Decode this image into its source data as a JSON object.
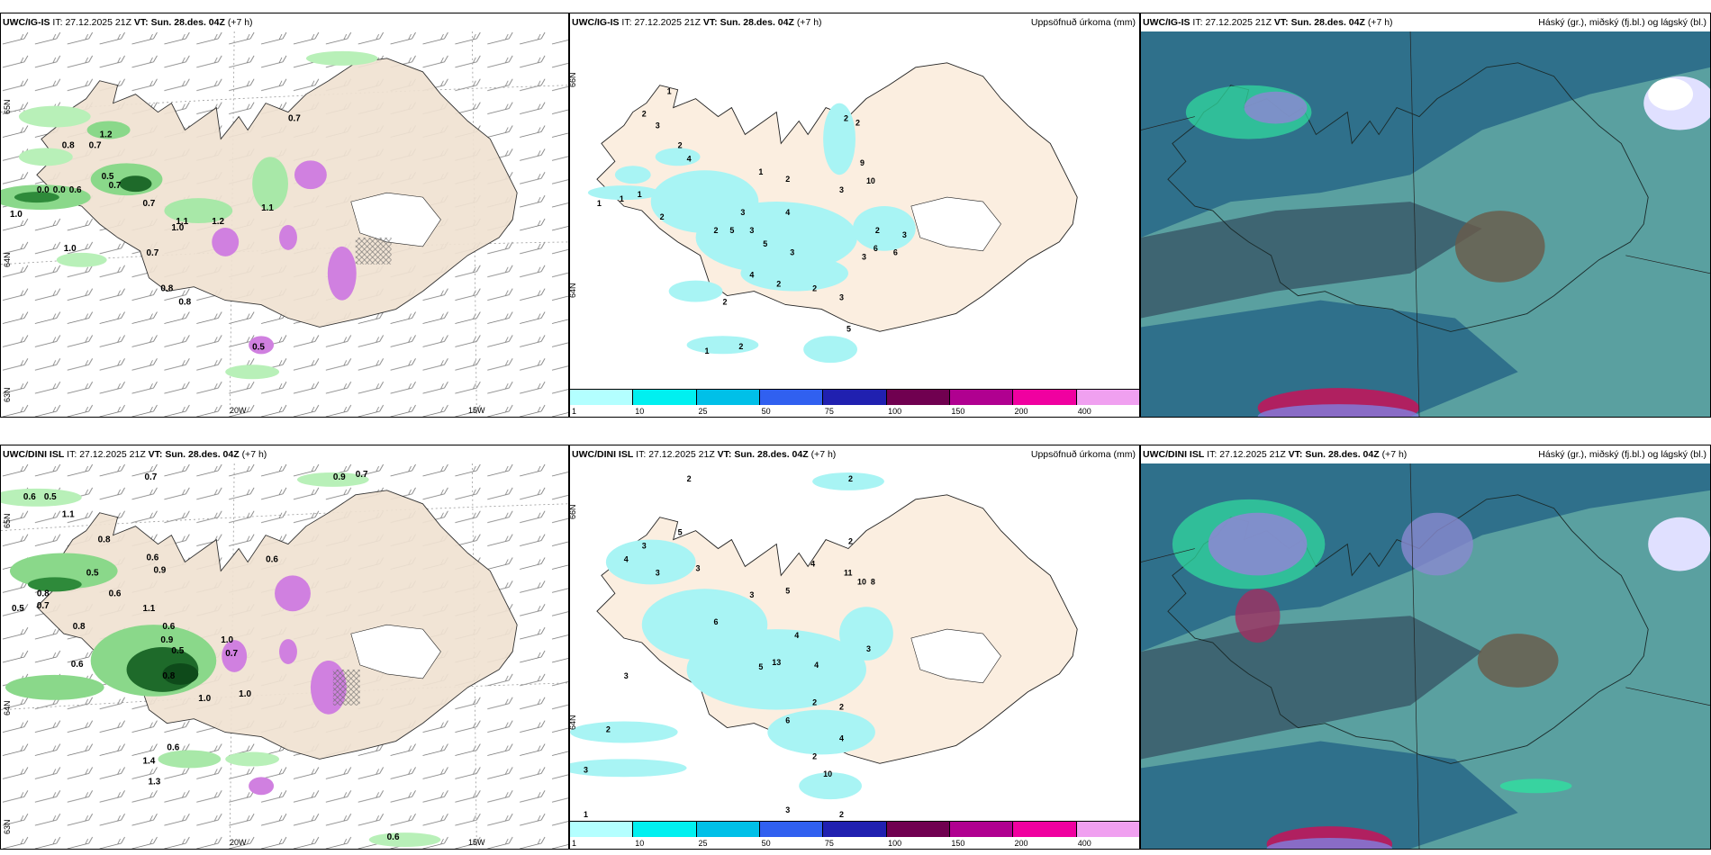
{
  "panels": [
    {
      "id": "top-left",
      "model": "UWC/IG-IS",
      "it_prefix": "IT:",
      "issue_time": "27.12.2025 21Z",
      "vt_prefix": "VT:",
      "valid_time": "Sun. 28.des. 04Z",
      "lead": "(+7 h)",
      "right_title": "",
      "bottom_ticks": [
        "20W",
        "15W"
      ],
      "left_ticks": [
        "65N",
        "64N",
        "63N"
      ],
      "values": [
        "0.7",
        "0.8",
        "0.7",
        "1.2",
        "0.5",
        "0.7",
        "0.0",
        "0.0",
        "0.6",
        "1.0",
        "1.1",
        "0.7",
        "1.0",
        "1.2",
        "0.8",
        "0.7",
        "0.8",
        "0.5",
        "1.0",
        "1.1"
      ]
    },
    {
      "id": "top-middle",
      "model": "UWC/IG-IS",
      "it_prefix": "IT:",
      "issue_time": "27.12.2025 21Z",
      "vt_prefix": "VT:",
      "valid_time": "Sun. 28.des. 04Z",
      "lead": "(+7 h)",
      "right_title": "Uppsöfnuð úrkoma (mm)",
      "left_ticks": [
        "66N",
        "64N"
      ],
      "values": [
        "1",
        "2",
        "3",
        "2",
        "4",
        "1",
        "1",
        "1",
        "2",
        "3",
        "2",
        "5",
        "3",
        "4",
        "5",
        "3",
        "1",
        "2",
        "4",
        "2",
        "2",
        "9",
        "10",
        "3",
        "2",
        "3",
        "6",
        "5",
        "1",
        "2",
        "2",
        "2",
        "3",
        "2",
        "6",
        "3"
      ]
    },
    {
      "id": "top-right",
      "model": "UWC/IG-IS",
      "it_prefix": "IT:",
      "issue_time": "27.12.2025 21Z",
      "vt_prefix": "VT:",
      "valid_time": "Sun. 28.des. 04Z",
      "lead": "(+7 h)",
      "right_title": "Háský (gr.), miðský (fj.bl.) og lágský (bl.)"
    },
    {
      "id": "bottom-left",
      "model": "UWC/DINI ISL",
      "it_prefix": "IT:",
      "issue_time": "27.12.2025 21Z",
      "vt_prefix": "VT:",
      "valid_time": "Sun. 28.des. 04Z",
      "lead": "(+7 h)",
      "right_title": "",
      "bottom_ticks": [
        "20W",
        "15W"
      ],
      "left_ticks": [
        "65N",
        "64N",
        "63N"
      ],
      "values": [
        "0.7",
        "0.9",
        "0.7",
        "0.6",
        "0.5",
        "1.1",
        "0.8",
        "0.6",
        "0.9",
        "0.5",
        "0.8",
        "0.5",
        "0.7",
        "0.6",
        "1.1",
        "0.8",
        "0.6",
        "1.0",
        "0.9",
        "0.5",
        "0.8",
        "1.0",
        "0.6",
        "1.0",
        "0.7",
        "0.6",
        "1.4",
        "1.3",
        "0.6",
        "0.6"
      ]
    },
    {
      "id": "bottom-middle",
      "model": "UWC/DINI ISL",
      "it_prefix": "IT:",
      "issue_time": "27.12.2025 21Z",
      "vt_prefix": "VT:",
      "valid_time": "Sun. 28.des. 04Z",
      "lead": "(+7 h)",
      "right_title": "Uppsöfnuð úrkoma (mm)",
      "left_ticks": [
        "66N",
        "64N"
      ],
      "values": [
        "2",
        "2",
        "3",
        "4",
        "3",
        "5",
        "3",
        "2",
        "11",
        "10",
        "8",
        "4",
        "5",
        "6",
        "3",
        "4",
        "13",
        "3",
        "2",
        "5",
        "4",
        "3",
        "2",
        "2",
        "3",
        "2",
        "6",
        "4",
        "10",
        "3",
        "2",
        "1"
      ]
    },
    {
      "id": "bottom-right",
      "model": "UWC/DINI ISL",
      "it_prefix": "IT:",
      "issue_time": "27.12.2025 21Z",
      "vt_prefix": "VT:",
      "valid_time": "Sun. 28.des. 04Z",
      "lead": "(+7 h)",
      "right_title": "Háský (gr.), miðský (fj.bl.) og lágský (bl.)"
    }
  ],
  "colorbar": {
    "labels": [
      "1",
      "10",
      "25",
      "50",
      "75",
      "100",
      "150",
      "200",
      "400"
    ],
    "colors": [
      "#b3ffff",
      "#00f0f0",
      "#00c0e8",
      "#3060f0",
      "#2020b0",
      "#700050",
      "#b00090",
      "#f000a0",
      "#f0a0f0"
    ]
  },
  "colors": {
    "land": "#f8e8d8",
    "sea_cloud": "#2a6a88",
    "cloud_low": "#5aa0a0",
    "cloud_high": "#30e0a0",
    "precip_light": "#a0f0f0"
  }
}
